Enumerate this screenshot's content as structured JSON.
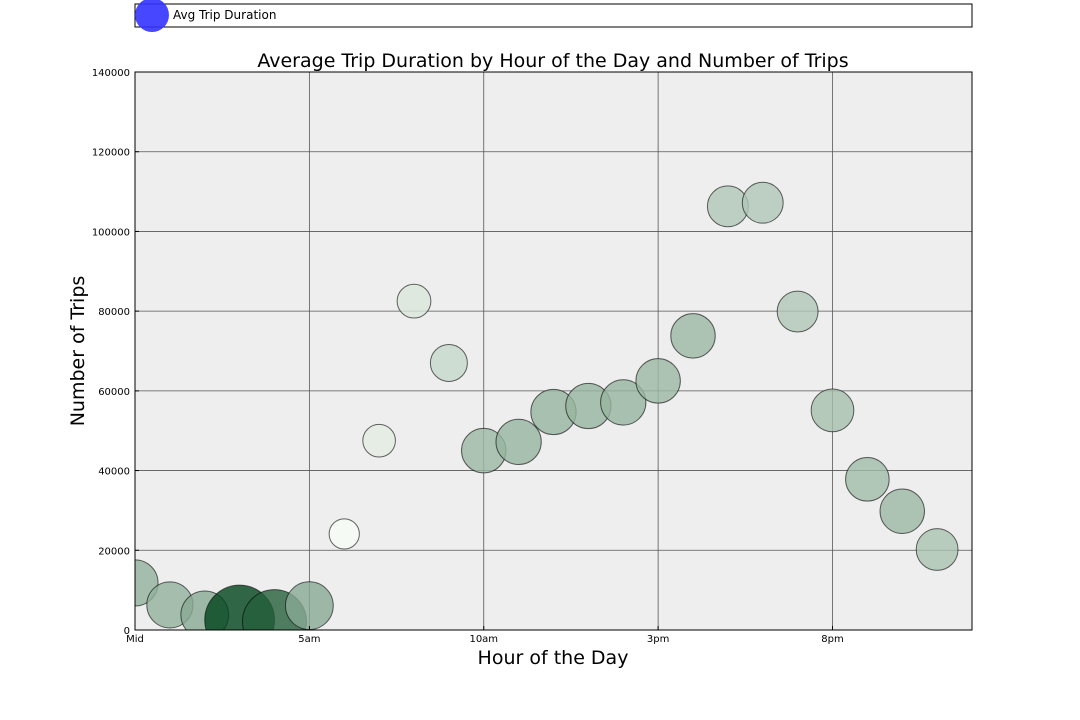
{
  "chart_data": {
    "type": "scatter",
    "title": "Average Trip Duration by Hour of the Day and Number of Trips",
    "xlabel": "Hour of the Day",
    "ylabel": "Number of Trips",
    "xlim": [
      0,
      24
    ],
    "ylim": [
      0,
      140000
    ],
    "x_ticks": [
      {
        "value": 0,
        "label": "Mid"
      },
      {
        "value": 5,
        "label": "5am"
      },
      {
        "value": 10,
        "label": "10am"
      },
      {
        "value": 15,
        "label": "3pm"
      },
      {
        "value": 20,
        "label": "8pm"
      }
    ],
    "y_ticks": [
      0,
      20000,
      40000,
      60000,
      80000,
      100000,
      120000,
      140000
    ],
    "grid": true,
    "legend": {
      "position": "top",
      "entries": [
        {
          "label": "Avg Trip Duration",
          "color": "#3333ff"
        }
      ]
    },
    "size_encodes": "Avg Trip Duration",
    "color_encodes": "Avg Trip Duration",
    "colors": {
      "plot_bg": "#eeeeee",
      "grid": "#555555",
      "bubble_low": "#f7fcf5",
      "bubble_high": "#00441b"
    },
    "points": [
      {
        "hour": 0,
        "trips": 11800,
        "avg_duration": 14
      },
      {
        "hour": 1,
        "trips": 6300,
        "avg_duration": 14
      },
      {
        "hour": 2,
        "trips": 3800,
        "avg_duration": 15
      },
      {
        "hour": 3,
        "trips": 2500,
        "avg_duration": 32
      },
      {
        "hour": 4,
        "trips": 2100,
        "avg_duration": 27
      },
      {
        "hour": 5,
        "trips": 6100,
        "avg_duration": 15
      },
      {
        "hour": 6,
        "trips": 24100,
        "avg_duration": 6
      },
      {
        "hour": 7,
        "trips": 47500,
        "avg_duration": 7
      },
      {
        "hour": 8,
        "trips": 82500,
        "avg_duration": 7.5
      },
      {
        "hour": 9,
        "trips": 67000,
        "avg_duration": 9
      },
      {
        "hour": 10,
        "trips": 45000,
        "avg_duration": 13
      },
      {
        "hour": 11,
        "trips": 47200,
        "avg_duration": 13.5
      },
      {
        "hour": 12,
        "trips": 54700,
        "avg_duration": 13.5
      },
      {
        "hour": 13,
        "trips": 56200,
        "avg_duration": 13.5
      },
      {
        "hour": 14,
        "trips": 57100,
        "avg_duration": 13.5
      },
      {
        "hour": 15,
        "trips": 62500,
        "avg_duration": 13
      },
      {
        "hour": 16,
        "trips": 73800,
        "avg_duration": 13
      },
      {
        "hour": 17,
        "trips": 106300,
        "avg_duration": 11
      },
      {
        "hour": 18,
        "trips": 107200,
        "avg_duration": 11
      },
      {
        "hour": 19,
        "trips": 79900,
        "avg_duration": 11
      },
      {
        "hour": 20,
        "trips": 55100,
        "avg_duration": 12
      },
      {
        "hour": 21,
        "trips": 37800,
        "avg_duration": 12.5
      },
      {
        "hour": 22,
        "trips": 29800,
        "avg_duration": 13
      },
      {
        "hour": 23,
        "trips": 20200,
        "avg_duration": 11.5
      }
    ]
  }
}
